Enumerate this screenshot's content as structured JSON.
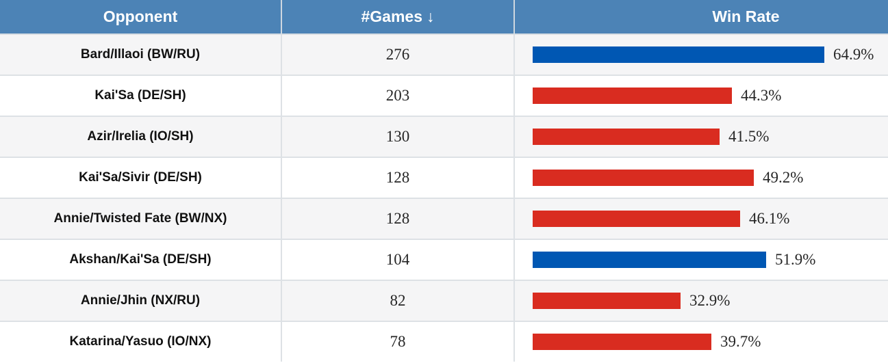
{
  "table": {
    "columns": [
      {
        "label": "Opponent"
      },
      {
        "label": "#Games",
        "sort_icon": "↓",
        "sorted": "descending"
      },
      {
        "label": "Win Rate"
      }
    ],
    "rows": [
      {
        "opponent": "Bard/Illaoi (BW/RU)",
        "games": "276",
        "win_rate": 64.9,
        "win_rate_label": "64.9%",
        "bar_color": "blue"
      },
      {
        "opponent": "Kai'Sa (DE/SH)",
        "games": "203",
        "win_rate": 44.3,
        "win_rate_label": "44.3%",
        "bar_color": "red"
      },
      {
        "opponent": "Azir/Irelia (IO/SH)",
        "games": "130",
        "win_rate": 41.5,
        "win_rate_label": "41.5%",
        "bar_color": "red"
      },
      {
        "opponent": "Kai'Sa/Sivir (DE/SH)",
        "games": "128",
        "win_rate": 49.2,
        "win_rate_label": "49.2%",
        "bar_color": "red"
      },
      {
        "opponent": "Annie/Twisted Fate (BW/NX)",
        "games": "128",
        "win_rate": 46.1,
        "win_rate_label": "46.1%",
        "bar_color": "red"
      },
      {
        "opponent": "Akshan/Kai'Sa (DE/SH)",
        "games": "104",
        "win_rate": 51.9,
        "win_rate_label": "51.9%",
        "bar_color": "blue"
      },
      {
        "opponent": "Annie/Jhin (NX/RU)",
        "games": "82",
        "win_rate": 32.9,
        "win_rate_label": "32.9%",
        "bar_color": "red"
      },
      {
        "opponent": "Katarina/Yasuo (IO/NX)",
        "games": "78",
        "win_rate": 39.7,
        "win_rate_label": "39.7%",
        "bar_color": "red"
      }
    ]
  },
  "colors": {
    "header_bg": "#4c83b6",
    "header_text": "#ffffff",
    "bar_blue": "#0057b3",
    "bar_red": "#d92c20",
    "row_alt_bg": "#f5f5f6",
    "row_bg": "#ffffff",
    "grid_line": "#dde1e5"
  },
  "chart_data": {
    "type": "bar",
    "orientation": "horizontal",
    "title": "",
    "xlabel": "",
    "ylabel": "",
    "categories": [
      "Bard/Illaoi (BW/RU)",
      "Kai'Sa (DE/SH)",
      "Azir/Irelia (IO/SH)",
      "Kai'Sa/Sivir (DE/SH)",
      "Annie/Twisted Fate (BW/NX)",
      "Akshan/Kai'Sa (DE/SH)",
      "Annie/Jhin (NX/RU)",
      "Katarina/Yasuo (IO/NX)"
    ],
    "series": [
      {
        "name": "#Games",
        "values": [
          276,
          203,
          130,
          128,
          128,
          104,
          82,
          78
        ]
      },
      {
        "name": "Win Rate %",
        "values": [
          64.9,
          44.3,
          41.5,
          49.2,
          46.1,
          51.9,
          32.9,
          39.7
        ]
      }
    ],
    "bar_color_rule": "blue (#0057b3) when win rate > 50%, red (#d92c20) when below 50%",
    "sorted_by": "#Games descending",
    "value_axis_range": [
      0,
      100
    ],
    "grid": false,
    "legend": false
  }
}
